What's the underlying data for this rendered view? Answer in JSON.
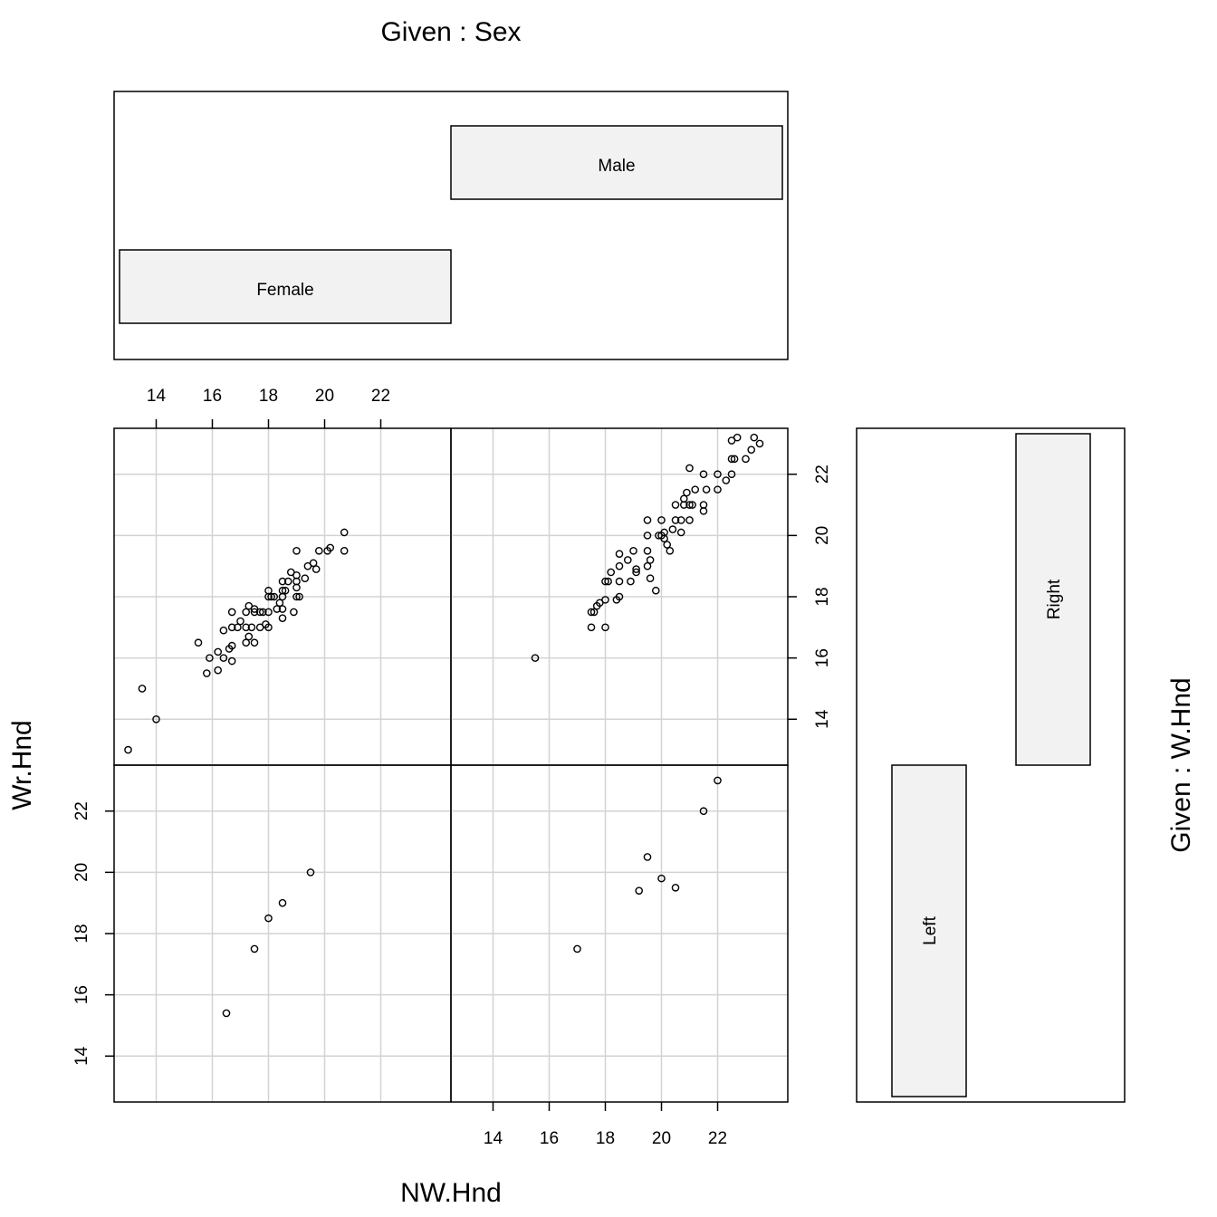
{
  "chart_data": {
    "type": "scatter",
    "layout": "coplot",
    "xlabel": "NW.Hnd",
    "ylabel": "Wr.Hnd",
    "given_x_label": "Given : Sex",
    "given_y_label": "Given : W.Hnd",
    "given_x_levels": [
      "Female",
      "Male"
    ],
    "given_y_levels": [
      "Left",
      "Right"
    ],
    "xlim": [
      12.5,
      24.5
    ],
    "ylim": [
      12.5,
      23.5
    ],
    "xticks": [
      14,
      16,
      18,
      20,
      22
    ],
    "yticks": [
      14,
      16,
      18,
      20,
      22
    ],
    "grid": true,
    "panels": [
      {
        "sex": "Female",
        "hand": "Right",
        "points": [
          [
            13.0,
            13.0
          ],
          [
            13.5,
            15.0
          ],
          [
            14.0,
            14.0
          ],
          [
            15.5,
            16.5
          ],
          [
            15.8,
            15.5
          ],
          [
            15.9,
            16.0
          ],
          [
            16.2,
            16.2
          ],
          [
            16.2,
            15.6
          ],
          [
            16.4,
            16.9
          ],
          [
            16.4,
            16.0
          ],
          [
            16.6,
            16.3
          ],
          [
            16.7,
            17.0
          ],
          [
            16.7,
            16.4
          ],
          [
            16.7,
            15.9
          ],
          [
            16.7,
            17.5
          ],
          [
            16.9,
            17.0
          ],
          [
            17.0,
            17.2
          ],
          [
            17.2,
            16.5
          ],
          [
            17.2,
            17.0
          ],
          [
            17.2,
            17.5
          ],
          [
            17.3,
            16.7
          ],
          [
            17.3,
            17.7
          ],
          [
            17.4,
            17.0
          ],
          [
            17.5,
            17.5
          ],
          [
            17.5,
            16.5
          ],
          [
            17.5,
            17.6
          ],
          [
            17.7,
            17.0
          ],
          [
            17.7,
            17.5
          ],
          [
            17.8,
            17.5
          ],
          [
            17.9,
            17.1
          ],
          [
            18.0,
            18.2
          ],
          [
            18.0,
            17.0
          ],
          [
            18.0,
            18.0
          ],
          [
            18.0,
            17.5
          ],
          [
            18.1,
            18.0
          ],
          [
            18.2,
            18.0
          ],
          [
            18.3,
            17.6
          ],
          [
            18.4,
            17.8
          ],
          [
            18.5,
            18.0
          ],
          [
            18.5,
            17.3
          ],
          [
            18.5,
            17.6
          ],
          [
            18.5,
            18.2
          ],
          [
            18.5,
            18.5
          ],
          [
            18.6,
            18.2
          ],
          [
            18.7,
            18.5
          ],
          [
            18.8,
            18.8
          ],
          [
            18.9,
            17.5
          ],
          [
            19.0,
            18.7
          ],
          [
            19.0,
            18.3
          ],
          [
            19.0,
            18.0
          ],
          [
            19.0,
            18.5
          ],
          [
            19.0,
            19.5
          ],
          [
            19.1,
            18.0
          ],
          [
            19.3,
            18.6
          ],
          [
            19.4,
            19.0
          ],
          [
            19.6,
            19.1
          ],
          [
            19.7,
            18.9
          ],
          [
            19.8,
            19.5
          ],
          [
            20.1,
            19.5
          ],
          [
            20.2,
            19.6
          ],
          [
            20.7,
            19.5
          ],
          [
            20.7,
            20.1
          ]
        ]
      },
      {
        "sex": "Male",
        "hand": "Right",
        "points": [
          [
            15.5,
            16.0
          ],
          [
            17.5,
            17.0
          ],
          [
            17.5,
            17.5
          ],
          [
            17.6,
            17.5
          ],
          [
            17.7,
            17.7
          ],
          [
            17.8,
            17.8
          ],
          [
            18.0,
            17.0
          ],
          [
            18.0,
            17.9
          ],
          [
            18.0,
            18.5
          ],
          [
            18.1,
            18.5
          ],
          [
            18.2,
            18.8
          ],
          [
            18.4,
            17.9
          ],
          [
            18.5,
            18.0
          ],
          [
            18.5,
            18.5
          ],
          [
            18.5,
            19.0
          ],
          [
            18.5,
            19.4
          ],
          [
            18.8,
            19.2
          ],
          [
            18.9,
            18.5
          ],
          [
            19.0,
            19.5
          ],
          [
            19.1,
            18.8
          ],
          [
            19.1,
            18.9
          ],
          [
            19.5,
            19.0
          ],
          [
            19.5,
            19.5
          ],
          [
            19.5,
            20.0
          ],
          [
            19.5,
            20.5
          ],
          [
            19.6,
            18.6
          ],
          [
            19.6,
            19.2
          ],
          [
            19.8,
            18.2
          ],
          [
            19.9,
            20.0
          ],
          [
            20.0,
            20.0
          ],
          [
            20.0,
            20.5
          ],
          [
            20.1,
            20.1
          ],
          [
            20.1,
            19.9
          ],
          [
            20.2,
            19.7
          ],
          [
            20.3,
            19.5
          ],
          [
            20.4,
            20.2
          ],
          [
            20.5,
            20.5
          ],
          [
            20.5,
            21.0
          ],
          [
            20.7,
            20.1
          ],
          [
            20.7,
            20.5
          ],
          [
            20.8,
            21.0
          ],
          [
            20.8,
            21.2
          ],
          [
            20.9,
            21.4
          ],
          [
            21.0,
            20.5
          ],
          [
            21.0,
            21.0
          ],
          [
            21.0,
            22.2
          ],
          [
            21.1,
            21.0
          ],
          [
            21.2,
            21.5
          ],
          [
            21.5,
            20.8
          ],
          [
            21.5,
            21.0
          ],
          [
            21.5,
            22.0
          ],
          [
            21.6,
            21.5
          ],
          [
            22.0,
            21.5
          ],
          [
            22.0,
            22.0
          ],
          [
            22.3,
            21.8
          ],
          [
            22.5,
            22.0
          ],
          [
            22.5,
            22.5
          ],
          [
            22.5,
            23.1
          ],
          [
            22.6,
            22.5
          ],
          [
            22.7,
            23.2
          ],
          [
            23.0,
            22.5
          ],
          [
            23.2,
            22.8
          ],
          [
            23.3,
            23.2
          ],
          [
            23.5,
            23.0
          ]
        ]
      },
      {
        "sex": "Female",
        "hand": "Left",
        "points": [
          [
            16.5,
            15.4
          ],
          [
            17.5,
            17.5
          ],
          [
            18.0,
            18.5
          ],
          [
            18.5,
            19.0
          ],
          [
            19.5,
            20.0
          ]
        ]
      },
      {
        "sex": "Male",
        "hand": "Left",
        "points": [
          [
            17.0,
            17.5
          ],
          [
            19.2,
            19.4
          ],
          [
            19.5,
            20.5
          ],
          [
            20.0,
            19.8
          ],
          [
            20.5,
            19.5
          ],
          [
            21.5,
            22.0
          ],
          [
            22.0,
            23.0
          ]
        ]
      }
    ]
  }
}
